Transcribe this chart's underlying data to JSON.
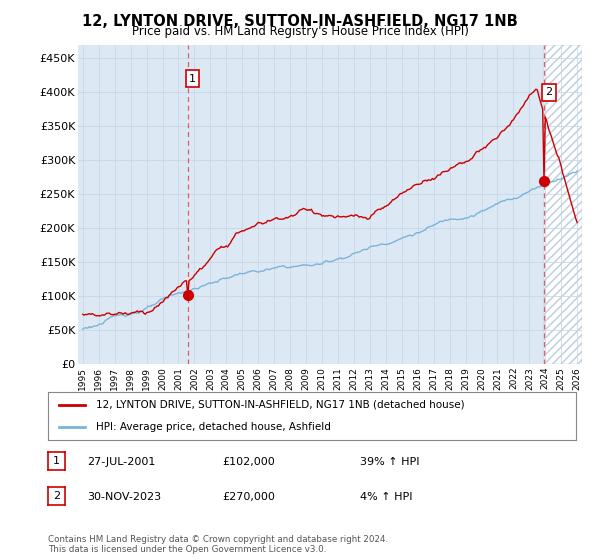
{
  "title": "12, LYNTON DRIVE, SUTTON-IN-ASHFIELD, NG17 1NB",
  "subtitle": "Price paid vs. HM Land Registry's House Price Index (HPI)",
  "ylabel_ticks": [
    "£0",
    "£50K",
    "£100K",
    "£150K",
    "£200K",
    "£250K",
    "£300K",
    "£350K",
    "£400K",
    "£450K"
  ],
  "ytick_vals": [
    0,
    50000,
    100000,
    150000,
    200000,
    250000,
    300000,
    350000,
    400000,
    450000
  ],
  "ylim": [
    0,
    470000
  ],
  "xlim_left": 1994.7,
  "xlim_right": 2026.3,
  "sale1_x": 2001.57,
  "sale1_y": 102000,
  "sale2_x": 2023.92,
  "sale2_y": 270000,
  "legend_line1": "12, LYNTON DRIVE, SUTTON-IN-ASHFIELD, NG17 1NB (detached house)",
  "legend_line2": "HPI: Average price, detached house, Ashfield",
  "table_rows": [
    {
      "num": "1",
      "date": "27-JUL-2001",
      "price": "£102,000",
      "hpi": "39% ↑ HPI"
    },
    {
      "num": "2",
      "date": "30-NOV-2023",
      "price": "£270,000",
      "hpi": "4% ↑ HPI"
    }
  ],
  "footer": "Contains HM Land Registry data © Crown copyright and database right 2024.\nThis data is licensed under the Open Government Licence v3.0.",
  "hpi_color": "#7ab4d8",
  "price_color": "#cc0000",
  "dashed_line_color": "#e06060",
  "plot_bg_color": "#dce9f5",
  "background_color": "#ffffff",
  "grid_color": "#c8d8e8"
}
